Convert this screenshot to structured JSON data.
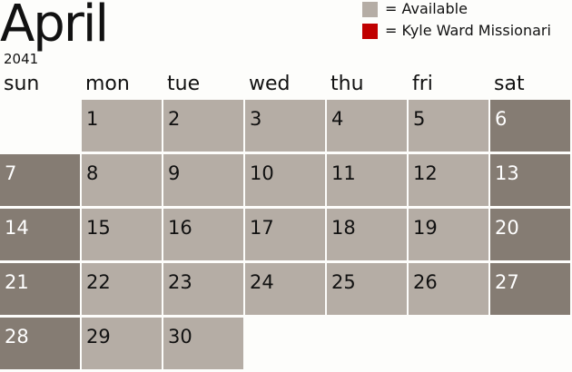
{
  "header": {
    "month": "April",
    "year": "2041"
  },
  "legend": [
    {
      "label": "= Available",
      "color": "#b5ada5"
    },
    {
      "label": "= Kyle Ward Missionari",
      "color": "#c00000"
    }
  ],
  "colors": {
    "available": "#b5ada5",
    "weekend": "#857c73"
  },
  "weekdays": [
    "sun",
    "mon",
    "tue",
    "wed",
    "thu",
    "fri",
    "sat"
  ],
  "first_weekday": 1,
  "days_in_month": 30
}
